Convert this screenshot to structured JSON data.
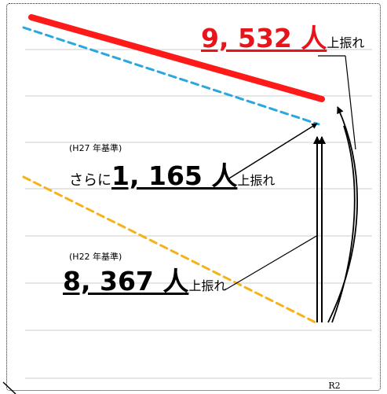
{
  "chart_data": {
    "type": "line",
    "title": "",
    "xlabel": "",
    "ylabel": "",
    "x_tick_label": "R2",
    "gridlines": 8,
    "grid": true,
    "series": [
      {
        "style": "solid",
        "color": "#ff1a1a"
      },
      {
        "style": "dashed",
        "color": "#29a8e0"
      },
      {
        "style": "dashed",
        "color": "#f5b21a"
      }
    ]
  },
  "annotations": {
    "top": {
      "value": "9, 532 人",
      "suffix": "上振れ",
      "color": "#e8141b"
    },
    "middle": {
      "basis": "(H27 年基準)",
      "prefix": "さらに",
      "value": "1, 165 人",
      "suffix": "上振れ"
    },
    "bottom": {
      "basis": "(H22 年基準)",
      "value": "8, 367 人",
      "suffix": "上振れ"
    }
  }
}
